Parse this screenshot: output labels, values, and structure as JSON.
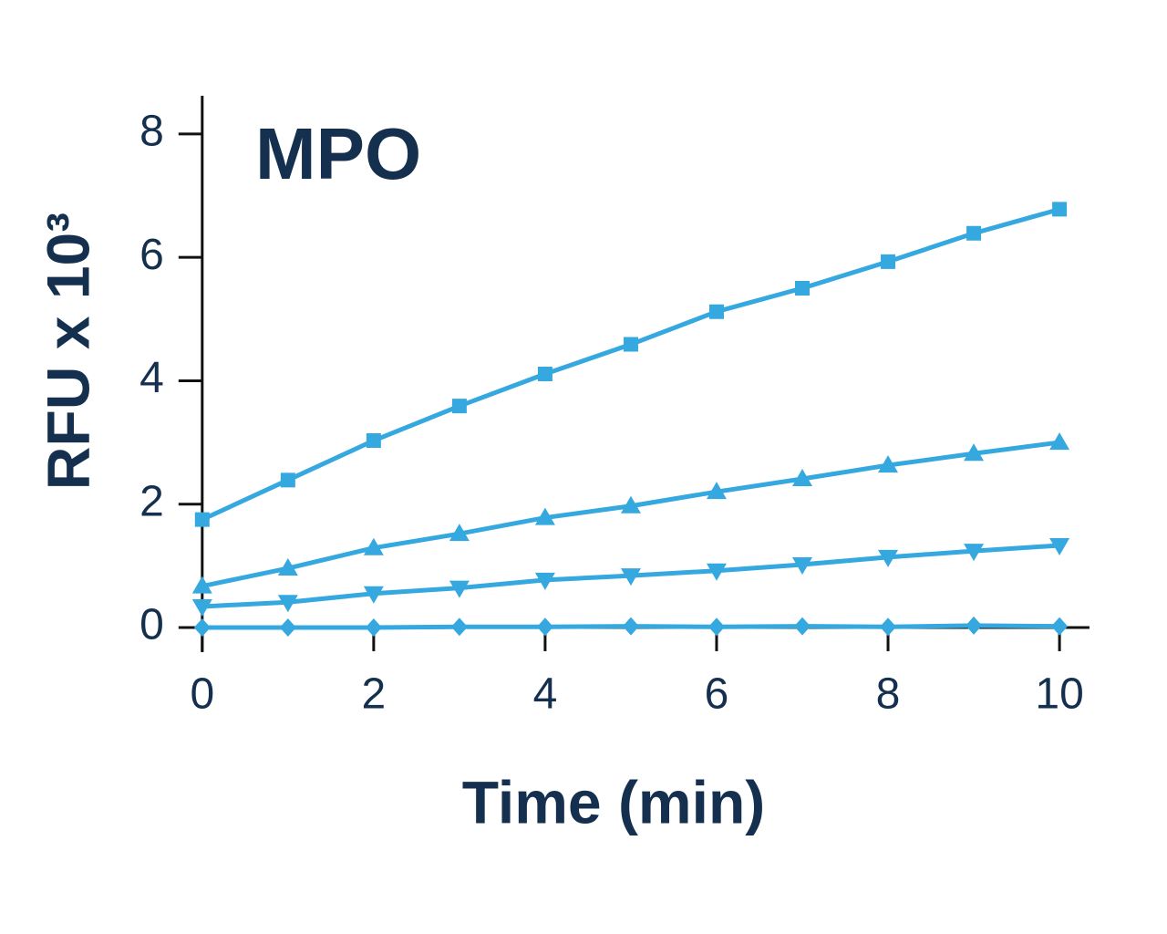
{
  "chart_data": {
    "type": "line",
    "title": "MPO",
    "x_label": "Time (min)",
    "y_label": "RFU x 10³",
    "x": [
      0,
      1,
      2,
      3,
      4,
      5,
      6,
      7,
      8,
      9,
      10
    ],
    "series": [
      {
        "color": "#35a8e0",
        "marker": "square",
        "values": [
          1.75,
          2.39,
          3.03,
          3.59,
          4.11,
          4.59,
          5.12,
          5.5,
          5.93,
          6.39,
          6.78
        ]
      },
      {
        "color": "#35a8e0",
        "marker": "triangle-up",
        "values": [
          0.67,
          0.96,
          1.29,
          1.52,
          1.78,
          1.97,
          2.2,
          2.41,
          2.63,
          2.82,
          3.0
        ]
      },
      {
        "color": "#35a8e0",
        "marker": "triangle-down",
        "values": [
          0.34,
          0.41,
          0.55,
          0.64,
          0.77,
          0.84,
          0.92,
          1.02,
          1.14,
          1.24,
          1.33
        ]
      },
      {
        "color": "#35a8e0",
        "marker": "diamond",
        "values": [
          0,
          0,
          0,
          0.01,
          0.01,
          0.02,
          0.01,
          0.02,
          0.01,
          0.03,
          0.02
        ]
      }
    ],
    "xlim": [
      -0.2,
      10.35
    ],
    "ylim": [
      -0.4,
      8.62
    ],
    "xticks": [
      0,
      2,
      4,
      6,
      8,
      10
    ],
    "yticks": [
      0,
      2,
      4,
      6,
      8
    ]
  }
}
